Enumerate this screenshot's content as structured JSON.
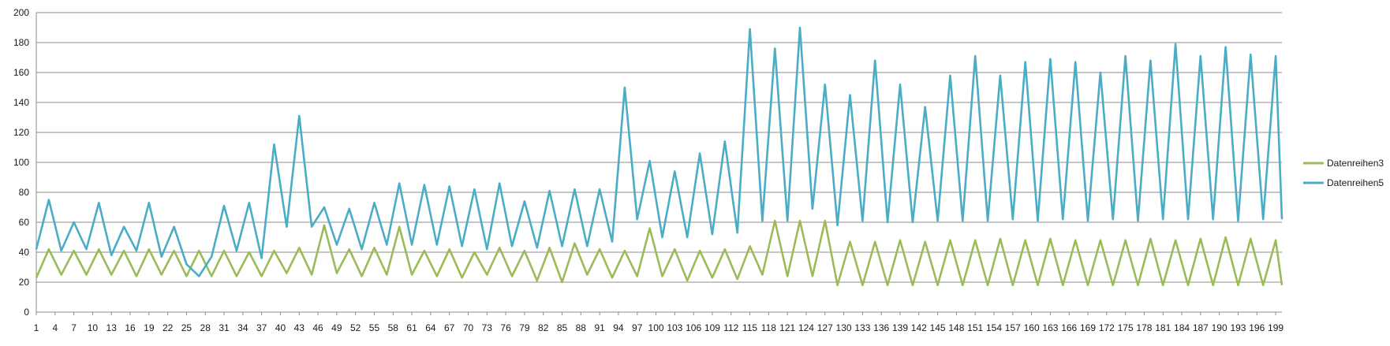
{
  "chart_data": {
    "type": "line",
    "title": "",
    "xlabel": "",
    "ylabel": "",
    "ylim": [
      0,
      200
    ],
    "yticks": [
      0,
      20,
      40,
      60,
      80,
      100,
      120,
      140,
      160,
      180,
      200
    ],
    "xlim": [
      1,
      200
    ],
    "xticks": [
      1,
      4,
      7,
      10,
      13,
      16,
      19,
      22,
      25,
      28,
      31,
      34,
      37,
      40,
      43,
      46,
      49,
      52,
      55,
      58,
      61,
      64,
      67,
      70,
      73,
      76,
      79,
      82,
      85,
      88,
      91,
      94,
      97,
      100,
      103,
      106,
      109,
      112,
      115,
      118,
      121,
      124,
      127,
      130,
      133,
      136,
      139,
      142,
      145,
      148,
      151,
      154,
      157,
      160,
      163,
      166,
      169,
      172,
      175,
      178,
      181,
      184,
      187,
      190,
      193,
      196,
      199
    ],
    "grid": "horizontal",
    "legend_position": "right",
    "series": [
      {
        "name": "Datenreihen3",
        "color": "#9bbb59",
        "points": [
          [
            1,
            23
          ],
          [
            3,
            42
          ],
          [
            5,
            25
          ],
          [
            7,
            41
          ],
          [
            9,
            25
          ],
          [
            11,
            42
          ],
          [
            13,
            25
          ],
          [
            15,
            41
          ],
          [
            17,
            24
          ],
          [
            19,
            42
          ],
          [
            21,
            25
          ],
          [
            23,
            41
          ],
          [
            25,
            24
          ],
          [
            27,
            41
          ],
          [
            29,
            24
          ],
          [
            31,
            41
          ],
          [
            33,
            24
          ],
          [
            35,
            40
          ],
          [
            37,
            24
          ],
          [
            39,
            41
          ],
          [
            41,
            26
          ],
          [
            43,
            43
          ],
          [
            45,
            25
          ],
          [
            47,
            58
          ],
          [
            49,
            26
          ],
          [
            51,
            42
          ],
          [
            53,
            24
          ],
          [
            55,
            43
          ],
          [
            57,
            25
          ],
          [
            59,
            57
          ],
          [
            61,
            25
          ],
          [
            63,
            41
          ],
          [
            65,
            24
          ],
          [
            67,
            42
          ],
          [
            69,
            23
          ],
          [
            71,
            40
          ],
          [
            73,
            25
          ],
          [
            75,
            43
          ],
          [
            77,
            24
          ],
          [
            79,
            41
          ],
          [
            81,
            21
          ],
          [
            83,
            43
          ],
          [
            85,
            20
          ],
          [
            87,
            46
          ],
          [
            89,
            25
          ],
          [
            91,
            42
          ],
          [
            93,
            23
          ],
          [
            95,
            41
          ],
          [
            97,
            24
          ],
          [
            99,
            56
          ],
          [
            101,
            24
          ],
          [
            103,
            42
          ],
          [
            105,
            21
          ],
          [
            107,
            41
          ],
          [
            109,
            23
          ],
          [
            111,
            42
          ],
          [
            113,
            22
          ],
          [
            115,
            44
          ],
          [
            117,
            25
          ],
          [
            119,
            61
          ],
          [
            121,
            24
          ],
          [
            123,
            61
          ],
          [
            125,
            24
          ],
          [
            127,
            61
          ],
          [
            129,
            18
          ],
          [
            131,
            47
          ],
          [
            133,
            18
          ],
          [
            135,
            47
          ],
          [
            137,
            18
          ],
          [
            139,
            48
          ],
          [
            141,
            18
          ],
          [
            143,
            47
          ],
          [
            145,
            18
          ],
          [
            147,
            48
          ],
          [
            149,
            18
          ],
          [
            151,
            48
          ],
          [
            153,
            18
          ],
          [
            155,
            49
          ],
          [
            157,
            18
          ],
          [
            159,
            48
          ],
          [
            161,
            18
          ],
          [
            163,
            49
          ],
          [
            165,
            18
          ],
          [
            167,
            48
          ],
          [
            169,
            18
          ],
          [
            171,
            48
          ],
          [
            173,
            18
          ],
          [
            175,
            48
          ],
          [
            177,
            18
          ],
          [
            179,
            49
          ],
          [
            181,
            18
          ],
          [
            183,
            48
          ],
          [
            185,
            18
          ],
          [
            187,
            49
          ],
          [
            189,
            18
          ],
          [
            191,
            50
          ],
          [
            193,
            18
          ],
          [
            195,
            49
          ],
          [
            197,
            18
          ],
          [
            199,
            48
          ],
          [
            200,
            18
          ]
        ]
      },
      {
        "name": "Datenreihen5",
        "color": "#4bacc6",
        "points": [
          [
            1,
            42
          ],
          [
            3,
            75
          ],
          [
            5,
            41
          ],
          [
            7,
            60
          ],
          [
            9,
            42
          ],
          [
            11,
            73
          ],
          [
            13,
            38
          ],
          [
            15,
            57
          ],
          [
            17,
            41
          ],
          [
            19,
            73
          ],
          [
            21,
            37
          ],
          [
            23,
            57
          ],
          [
            25,
            32
          ],
          [
            27,
            24
          ],
          [
            29,
            37
          ],
          [
            31,
            71
          ],
          [
            33,
            41
          ],
          [
            35,
            73
          ],
          [
            37,
            36
          ],
          [
            39,
            112
          ],
          [
            41,
            57
          ],
          [
            43,
            131
          ],
          [
            45,
            57
          ],
          [
            47,
            70
          ],
          [
            49,
            45
          ],
          [
            51,
            69
          ],
          [
            53,
            42
          ],
          [
            55,
            73
          ],
          [
            57,
            45
          ],
          [
            59,
            86
          ],
          [
            61,
            45
          ],
          [
            63,
            85
          ],
          [
            65,
            45
          ],
          [
            67,
            84
          ],
          [
            69,
            44
          ],
          [
            71,
            82
          ],
          [
            73,
            42
          ],
          [
            75,
            86
          ],
          [
            77,
            44
          ],
          [
            79,
            74
          ],
          [
            81,
            43
          ],
          [
            83,
            81
          ],
          [
            85,
            44
          ],
          [
            87,
            82
          ],
          [
            89,
            44
          ],
          [
            91,
            82
          ],
          [
            93,
            47
          ],
          [
            95,
            150
          ],
          [
            97,
            62
          ],
          [
            99,
            101
          ],
          [
            101,
            50
          ],
          [
            103,
            94
          ],
          [
            105,
            50
          ],
          [
            107,
            106
          ],
          [
            109,
            52
          ],
          [
            111,
            114
          ],
          [
            113,
            53
          ],
          [
            115,
            189
          ],
          [
            117,
            61
          ],
          [
            119,
            176
          ],
          [
            121,
            61
          ],
          [
            123,
            190
          ],
          [
            125,
            69
          ],
          [
            127,
            152
          ],
          [
            129,
            58
          ],
          [
            131,
            145
          ],
          [
            133,
            61
          ],
          [
            135,
            168
          ],
          [
            137,
            60
          ],
          [
            139,
            152
          ],
          [
            141,
            60
          ],
          [
            143,
            137
          ],
          [
            145,
            61
          ],
          [
            147,
            158
          ],
          [
            149,
            61
          ],
          [
            151,
            171
          ],
          [
            153,
            61
          ],
          [
            155,
            158
          ],
          [
            157,
            62
          ],
          [
            159,
            167
          ],
          [
            161,
            61
          ],
          [
            163,
            169
          ],
          [
            165,
            62
          ],
          [
            167,
            167
          ],
          [
            169,
            61
          ],
          [
            171,
            160
          ],
          [
            173,
            62
          ],
          [
            175,
            171
          ],
          [
            177,
            61
          ],
          [
            179,
            168
          ],
          [
            181,
            62
          ],
          [
            183,
            179
          ],
          [
            185,
            62
          ],
          [
            187,
            171
          ],
          [
            189,
            62
          ],
          [
            191,
            177
          ],
          [
            193,
            61
          ],
          [
            195,
            172
          ],
          [
            197,
            62
          ],
          [
            199,
            171
          ],
          [
            200,
            62
          ]
        ]
      }
    ]
  }
}
